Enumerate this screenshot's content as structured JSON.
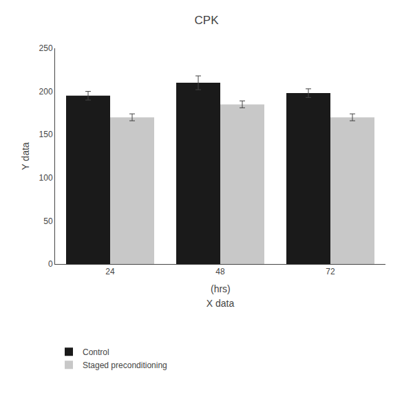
{
  "chart_data": {
    "type": "bar",
    "title": "CPK",
    "xlabel": "X data",
    "ylabel": "Y data",
    "annotations": [
      "(hrs)"
    ],
    "categories": [
      "24",
      "48",
      "72"
    ],
    "series": [
      {
        "name": "Control",
        "color": "#1a1a1a",
        "values": [
          195,
          210,
          198
        ],
        "errors": [
          5,
          8,
          5
        ]
      },
      {
        "name": "Staged preconditioning",
        "color": "#c8c8c8",
        "values": [
          170,
          185,
          170
        ],
        "errors": [
          4,
          4,
          4
        ]
      }
    ],
    "ylim": [
      0,
      250
    ],
    "yticks": [
      0,
      50,
      100,
      150,
      200,
      250
    ],
    "grid": false,
    "legend": "bottom"
  }
}
